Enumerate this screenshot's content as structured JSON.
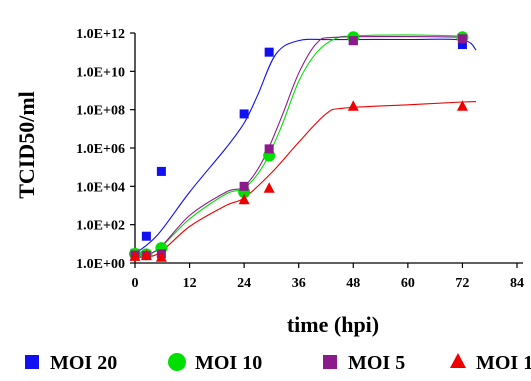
{
  "chart_data": {
    "type": "scatter",
    "xlabel": "time (hpi)",
    "ylabel": "TCID50/ml",
    "x_ticks": [
      "0",
      "12",
      "24",
      "36",
      "48",
      "60",
      "72",
      "84"
    ],
    "xlim": [
      0,
      84
    ],
    "y_scale": "log",
    "y_ticks": [
      "1.0E+00",
      "1.0E+02",
      "1.0E+04",
      "1.0E+06",
      "1.0E+08",
      "1.0E+10",
      "1.0E+12"
    ],
    "ylim": [
      1,
      1000000000000.0
    ],
    "grid": false,
    "legend_position": "bottom",
    "series": [
      {
        "name": "MOI 20",
        "color": "#1010f0",
        "marker": "square",
        "points": [
          [
            0,
            3.2
          ],
          [
            2.5,
            25
          ],
          [
            5.8,
            60000.0
          ],
          [
            24,
            60000000.0
          ],
          [
            29.5,
            100000000000.0
          ],
          [
            48,
            400000000000.0
          ],
          [
            72,
            250000000000.0
          ]
        ],
        "curve": [
          [
            0,
            3
          ],
          [
            5,
            30
          ],
          [
            12,
            5000.0
          ],
          [
            20,
            1000000.0
          ],
          [
            24,
            20000000.0
          ],
          [
            27,
            600000000.0
          ],
          [
            31,
            80000000000.0
          ],
          [
            36,
            400000000000.0
          ],
          [
            44,
            450000000000.0
          ],
          [
            60,
            460000000000.0
          ],
          [
            72,
            430000000000.0
          ],
          [
            75,
            130000000000.0
          ]
        ]
      },
      {
        "name": "MOI 10",
        "color": "#00e000",
        "marker": "circle",
        "points": [
          [
            0,
            3
          ],
          [
            2.5,
            2.8
          ],
          [
            5.8,
            6
          ],
          [
            24,
            5000.0
          ],
          [
            29.5,
            400000.0
          ],
          [
            48,
            600000000000.0
          ],
          [
            72,
            600000000000.0
          ]
        ],
        "curve": [
          [
            0,
            2
          ],
          [
            5,
            5
          ],
          [
            12,
            200
          ],
          [
            20,
            4000.0
          ],
          [
            24,
            8000.0
          ],
          [
            28,
            100000.0
          ],
          [
            32,
            10000000.0
          ],
          [
            36,
            3000000000.0
          ],
          [
            40,
            100000000000.0
          ],
          [
            44,
            500000000000.0
          ],
          [
            48,
            700000000000.0
          ],
          [
            60,
            800000000000.0
          ],
          [
            72,
            700000000000.0
          ]
        ]
      },
      {
        "name": "MOI 5",
        "color": "#8b1a8b",
        "marker": "square",
        "points": [
          [
            0,
            2.6
          ],
          [
            2.5,
            2.4
          ],
          [
            5.8,
            3
          ],
          [
            24,
            10000.0
          ],
          [
            29.5,
            900000.0
          ],
          [
            48,
            400000000000.0
          ],
          [
            72,
            500000000000.0
          ]
        ],
        "curve": [
          [
            0,
            2
          ],
          [
            5,
            5
          ],
          [
            12,
            300
          ],
          [
            20,
            5000.0
          ],
          [
            24,
            10000.0
          ],
          [
            28,
            200000.0
          ],
          [
            32,
            30000000.0
          ],
          [
            36,
            8000000000.0
          ],
          [
            40,
            300000000000.0
          ],
          [
            44,
            600000000000.0
          ],
          [
            60,
            650000000000.0
          ],
          [
            72,
            600000000000.0
          ]
        ]
      },
      {
        "name": "MOI 1",
        "color": "#ee0000",
        "marker": "triangle",
        "points": [
          [
            0,
            2.2
          ],
          [
            2.5,
            2.5
          ],
          [
            5.8,
            2
          ],
          [
            24,
            2000.0
          ],
          [
            29.5,
            8000.0
          ],
          [
            48,
            150000000.0
          ],
          [
            72,
            150000000.0
          ]
        ],
        "curve": [
          [
            0,
            2
          ],
          [
            5,
            3
          ],
          [
            12,
            80
          ],
          [
            20,
            1000.0
          ],
          [
            24,
            2500.0
          ],
          [
            30,
            50000.0
          ],
          [
            36,
            2000000.0
          ],
          [
            42,
            60000000.0
          ],
          [
            46,
            120000000.0
          ],
          [
            60,
            180000000.0
          ],
          [
            72,
            250000000.0
          ],
          [
            75,
            260000000.0
          ]
        ]
      }
    ]
  }
}
